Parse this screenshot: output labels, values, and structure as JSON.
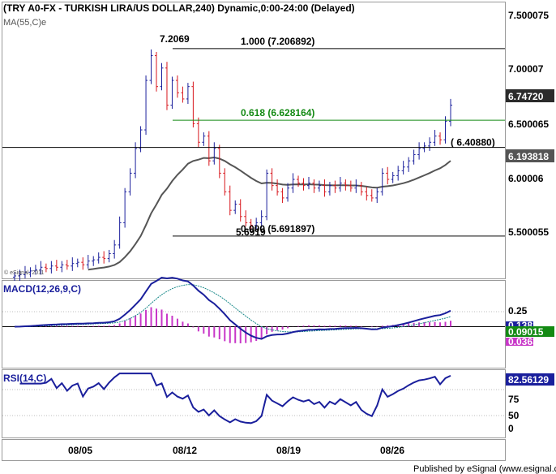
{
  "chart_data": {
    "type": "candlestick",
    "colors": {
      "up": "#1a1f9c",
      "down": "#d8161c",
      "ma": "#555555",
      "fibo_line": "#000000",
      "fibo_618": "#138a13",
      "macd": "#1a1f9c",
      "signal": "#1a8a8a",
      "hist": "#c837c8",
      "rsi": "#1a1f9c",
      "badge_dark": "#2b2b2b",
      "badge_blue": "#1a1f9c",
      "badge_green": "#138a13",
      "badge_pink": "#c837c8"
    },
    "price_panel": {
      "title": "(TRY A0-FX - TURKISH LIRA/US DOLLAR,240) Dynamic,0:00-24:00 (Delayed)",
      "ma_label": "MA(55,C)e",
      "copyright": "© eSignal, 2011",
      "ylim": [
        5.35,
        7.58
      ],
      "yticks": [
        "7.500075",
        "7.00007",
        "6.500065",
        "6.00006",
        "5.500055"
      ],
      "high_label": "7.2069",
      "low_label": "5.6919",
      "last_price_badge": "6.74720",
      "ma_badge": "6.193818",
      "fib_levels": [
        {
          "label": "1.000 (7.206892)",
          "value": 7.206892
        },
        {
          "label": "0.618 (6.628164)",
          "value": 6.628164
        },
        {
          "label": "0.000 (5.691897)",
          "value": 5.691897
        }
      ],
      "horizontal_line": {
        "label": "( 6.40880)",
        "value": 6.4088
      }
    },
    "macd_panel": {
      "title": "MACD(12,26,9,C)",
      "ylim": [
        -0.34,
        0.38
      ],
      "ytick": "0.25",
      "badges": [
        "0.13818",
        "0.09015",
        "0.03633"
      ]
    },
    "rsi_panel": {
      "title": "RSI(14,C)",
      "ylim": [
        0,
        100
      ],
      "yticks": [
        "75",
        "50",
        "0"
      ],
      "badge": "82.56129"
    },
    "x_ticks": [
      "08/05",
      "08/12",
      "08/19",
      "08/26"
    ],
    "footer": "Published by eSignal (www.esignal.com)"
  }
}
